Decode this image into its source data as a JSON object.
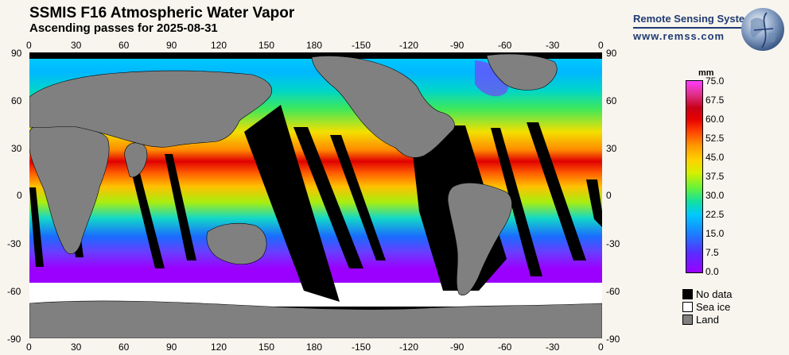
{
  "header": {
    "title": "SSMIS F16 Atmospheric Water Vapor",
    "subtitle": "Ascending passes for 2025-08-31"
  },
  "brand": {
    "name": "Remote Sensing Systems",
    "url": "www.remss.com",
    "logo_icon": "globe-logo-icon"
  },
  "map": {
    "lon_ticks": [
      "0",
      "30",
      "60",
      "90",
      "120",
      "150",
      "180",
      "-150",
      "-120",
      "-90",
      "-60",
      "-30",
      "0"
    ],
    "lat_ticks": [
      "90",
      "60",
      "30",
      "0",
      "-30",
      "-60",
      "-90"
    ],
    "projection": "equirectangular",
    "lon_range": [
      0,
      360
    ],
    "lat_range": [
      -90,
      90
    ]
  },
  "colorbar": {
    "unit": "mm",
    "labels": [
      "75.0",
      "67.5",
      "60.0",
      "52.5",
      "45.0",
      "37.5",
      "30.0",
      "22.5",
      "15.0",
      "7.5",
      "0.0"
    ],
    "min": 0.0,
    "max": 75.0
  },
  "legend": [
    {
      "label": "No data",
      "color": "#000000"
    },
    {
      "label": "Sea ice",
      "color": "#ffffff"
    },
    {
      "label": "Land",
      "color": "#808080"
    }
  ],
  "colors": {
    "land": "#808080",
    "no_data": "#000000",
    "sea_ice": "#ffffff",
    "brand": "#1f3a73"
  }
}
